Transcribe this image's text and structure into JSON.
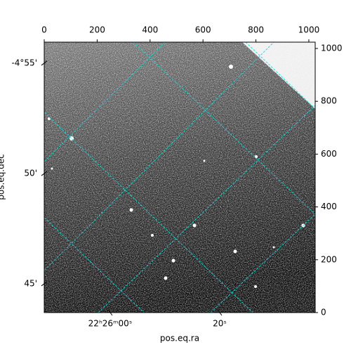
{
  "chart_data": {
    "type": "image",
    "xlabel": "pos.eq.ra",
    "ylabel": "pos.eq.dec",
    "xlim": [
      0,
      1024
    ],
    "xticks": [
      0,
      200,
      400,
      600,
      800,
      1000
    ],
    "ylim": [
      0,
      1024
    ],
    "yticks": [
      0,
      200,
      400,
      600,
      800,
      1000
    ],
    "ra_lim": [
      -12.05,
      37.44
    ],
    "ra_ticks": [
      {
        "value": 0,
        "label": "22ʰ26ᵐ00ˢ"
      },
      {
        "value": 20,
        "label": "20ˢ"
      }
    ],
    "dec_lim": [
      -4.7282,
      -4.9326
    ],
    "dec_ticks": [
      {
        "value": -4.9167,
        "label": "-4°55'"
      },
      {
        "value": -4.8333,
        "label": "50'"
      },
      {
        "value": -4.75,
        "label": "45'"
      }
    ],
    "grid_color": "#00e5e5"
  }
}
